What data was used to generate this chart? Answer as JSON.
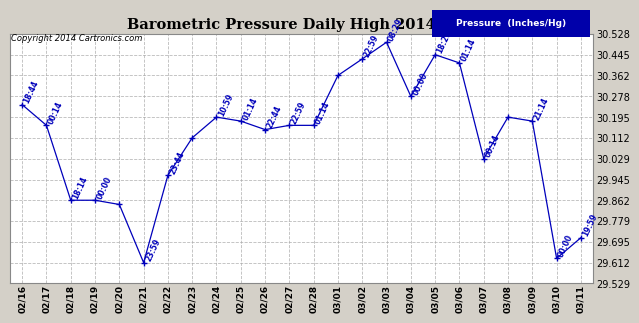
{
  "title": "Barometric Pressure Daily High 20140312",
  "copyright": "Copyright 2014 Cartronics.com",
  "legend_label": "Pressure  (Inches/Hg)",
  "dates": [
    "02/16",
    "02/17",
    "02/18",
    "02/19",
    "02/20",
    "02/21",
    "02/22",
    "02/23",
    "02/24",
    "02/25",
    "02/26",
    "02/27",
    "02/28",
    "03/01",
    "03/02",
    "03/03",
    "03/04",
    "03/05",
    "03/06",
    "03/07",
    "03/08",
    "03/09",
    "03/10",
    "03/11"
  ],
  "values": [
    30.245,
    30.162,
    29.862,
    29.862,
    29.845,
    29.612,
    29.962,
    30.112,
    30.195,
    30.179,
    30.145,
    30.162,
    30.162,
    30.362,
    30.428,
    30.495,
    30.278,
    30.445,
    30.412,
    30.029,
    30.195,
    30.179,
    29.629,
    29.712
  ],
  "time_labels": [
    "18:44",
    "00:14",
    "18:14",
    "00:00",
    "",
    "23:59",
    "23:44",
    "",
    "10:59",
    "01:14",
    "22:44",
    "22:59",
    "01:14",
    "",
    "22:59",
    "08:29",
    "00:00",
    "18:29",
    "01:14",
    "00:14",
    "",
    "21:14",
    "00:00",
    "19:59"
  ],
  "ylim_min": 29.529,
  "ylim_max": 30.528,
  "yticks": [
    29.529,
    29.612,
    29.695,
    29.779,
    29.862,
    29.945,
    30.029,
    30.112,
    30.195,
    30.278,
    30.362,
    30.445,
    30.528
  ],
  "line_color": "#0000bb",
  "bg_color": "#d4d0c8",
  "plot_bg_color": "#ffffff",
  "grid_color": "#aaaaaa",
  "title_color": "#000000",
  "text_color": "#0000bb",
  "legend_bg": "#0000aa",
  "legend_text": "#ffffff"
}
